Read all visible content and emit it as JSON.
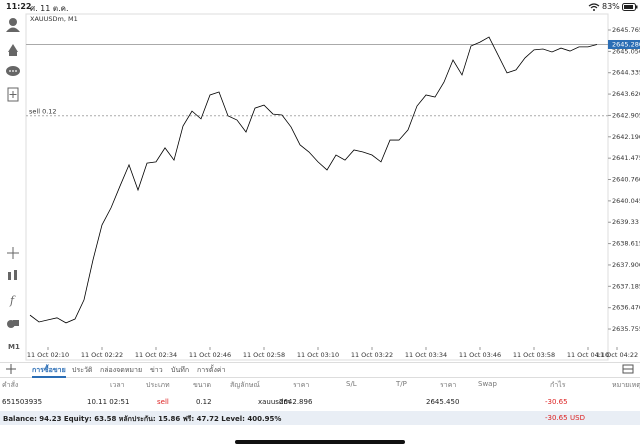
{
  "status_bar": {
    "time": "11:22",
    "date": "ศ. 11 ต.ค.",
    "battery": "83%"
  },
  "toolbar": {
    "timeframe": "M1"
  },
  "chart_data": {
    "type": "line",
    "symbol_label": "XAUUSDm, M1",
    "color": "#000000",
    "categories": [
      null,
      null,
      "11 Oct 02:10",
      null,
      null,
      null,
      null,
      null,
      "11 Oct 02:22",
      null,
      null,
      null,
      null,
      null,
      "11 Oct 02:34",
      null,
      null,
      null,
      null,
      null,
      "11 Oct 02:46",
      null,
      null,
      null,
      null,
      null,
      "11 Oct 02:58",
      null,
      null,
      null,
      null,
      null,
      "11 Oct 03:10",
      null,
      null,
      null,
      null,
      null,
      "11 Oct 03:22",
      null,
      null,
      null,
      null,
      null,
      "11 Oct 03:34",
      null,
      null,
      null,
      null,
      null,
      "11 Oct 03:46",
      null,
      null,
      null,
      null,
      null,
      "11 Oct 03:58",
      null,
      null,
      null,
      null,
      null,
      "11 Oct 04:10",
      null,
      null,
      null,
      null,
      null,
      "11 Oct 04:22"
    ],
    "values": [
      2636.22,
      2635.99,
      2636.06,
      2636.13,
      2635.96,
      2636.09,
      2636.73,
      2638.07,
      2639.24,
      2639.81,
      2640.54,
      2641.25,
      2640.41,
      2641.31,
      2641.35,
      2641.82,
      2641.41,
      2642.55,
      2643.05,
      2642.79,
      2643.59,
      2643.69,
      2642.89,
      2642.75,
      2642.35,
      2643.15,
      2643.25,
      2642.95,
      2642.92,
      2642.52,
      2641.92,
      2641.68,
      2641.35,
      2641.08,
      2641.58,
      2641.41,
      2641.75,
      2641.68,
      2641.58,
      2641.35,
      2642.08,
      2642.08,
      2642.42,
      2643.22,
      2643.59,
      2643.52,
      2644.02,
      2644.76,
      2644.26,
      2645.23,
      2645.36,
      2645.53,
      2644.93,
      2644.33,
      2644.43,
      2644.83,
      2645.1,
      2645.13,
      2645.03,
      2645.16,
      2645.06,
      2645.2,
      2645.2,
      2645.28,
      null,
      null,
      null,
      null,
      null
    ],
    "ylim": [
      2635.22,
      2646.1
    ],
    "yticks": [
      2645.765,
      {
        "value": 2645.05,
        "label": "2645.050"
      },
      2644.335,
      {
        "value": 2643.62,
        "label": "2643.620"
      },
      2642.905,
      {
        "value": 2642.19,
        "label": "2642.190"
      },
      2641.475,
      {
        "value": 2640.76,
        "label": "2640.760"
      },
      2640.045,
      2639.33,
      2638.615,
      {
        "value": 2637.9,
        "label": "2637.900"
      },
      2637.185,
      {
        "value": 2636.47,
        "label": "2636.470"
      },
      2635.755
    ],
    "price_line": {
      "value": 2645.28,
      "label": "2645.280",
      "color": "#2a6db5"
    },
    "order_line": {
      "value": 2642.896,
      "label": "sell 0.12"
    }
  },
  "tabs": [
    "การซื้อขาย",
    "ประวัติ",
    "กล่องจดหมาย",
    "ข่าว",
    "บันทึก",
    "การตั้งค่า"
  ],
  "table": {
    "header": [
      "คำสั่ง",
      "เวลา",
      "ประเภท",
      "ขนาด",
      "สัญลักษณ์",
      "ราคา",
      "S/L",
      "T/P",
      "ราคา",
      "Swap",
      "กำไร",
      "หมายเหตุ"
    ],
    "row": {
      "order": "651503935",
      "time": "10.11 02:51",
      "type": "sell",
      "volume": "0.12",
      "symbol": "xauusdm",
      "price": "2642.896",
      "current_price": "2645.450",
      "profit": "-30.65"
    }
  },
  "summary": {
    "text": "Balance: 94.23 Equity: 63.58 หลักประกัน: 15.86 ฟรี: 47.72 Level: 400.95%",
    "profit": "-30.65",
    "currency": "USD"
  }
}
